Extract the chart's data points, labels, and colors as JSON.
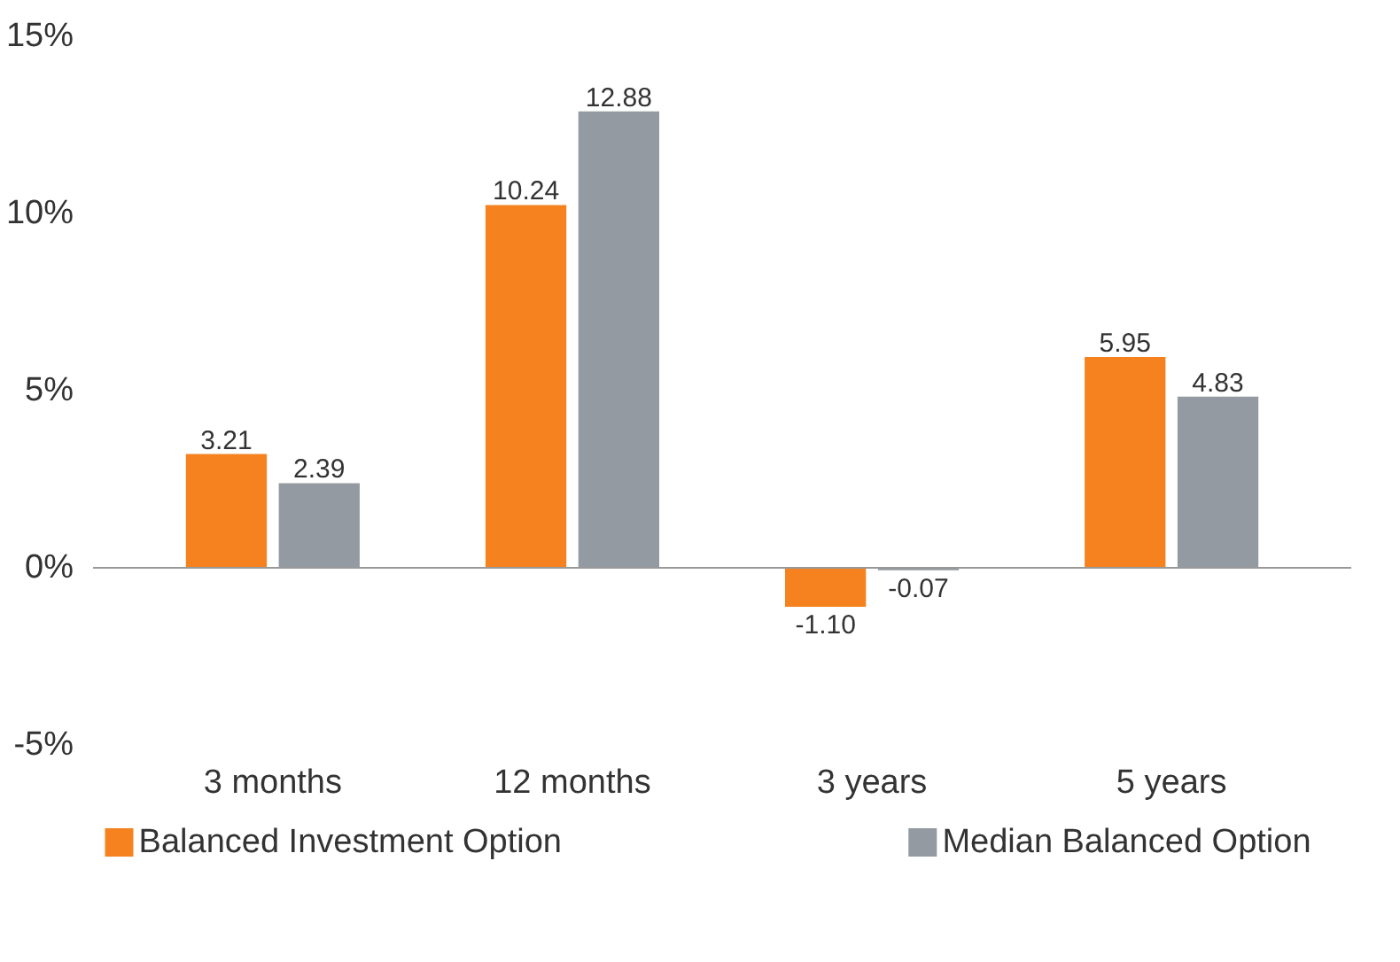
{
  "chart_data": {
    "type": "bar",
    "categories": [
      "3 months",
      "12 months",
      "3 years",
      "5 years"
    ],
    "series": [
      {
        "name": "Balanced Investment Option",
        "color": "#f5821f",
        "values": [
          3.21,
          10.24,
          -1.1,
          5.95
        ],
        "value_labels": [
          "3.21",
          "10.24",
          "-1.10",
          "5.95"
        ]
      },
      {
        "name": "Median Balanced Option",
        "color": "#939aa1",
        "values": [
          2.39,
          12.88,
          -0.07,
          4.83
        ],
        "value_labels": [
          "2.39",
          "12.88",
          "-0.07",
          "4.83"
        ]
      }
    ],
    "ylim": [
      -5,
      15
    ],
    "yticks": [
      {
        "value": -5,
        "label": "-5%"
      },
      {
        "value": 0,
        "label": "0%"
      },
      {
        "value": 5,
        "label": "5%"
      },
      {
        "value": 10,
        "label": "10%"
      },
      {
        "value": 15,
        "label": "15%"
      }
    ],
    "legend": "bottom"
  }
}
